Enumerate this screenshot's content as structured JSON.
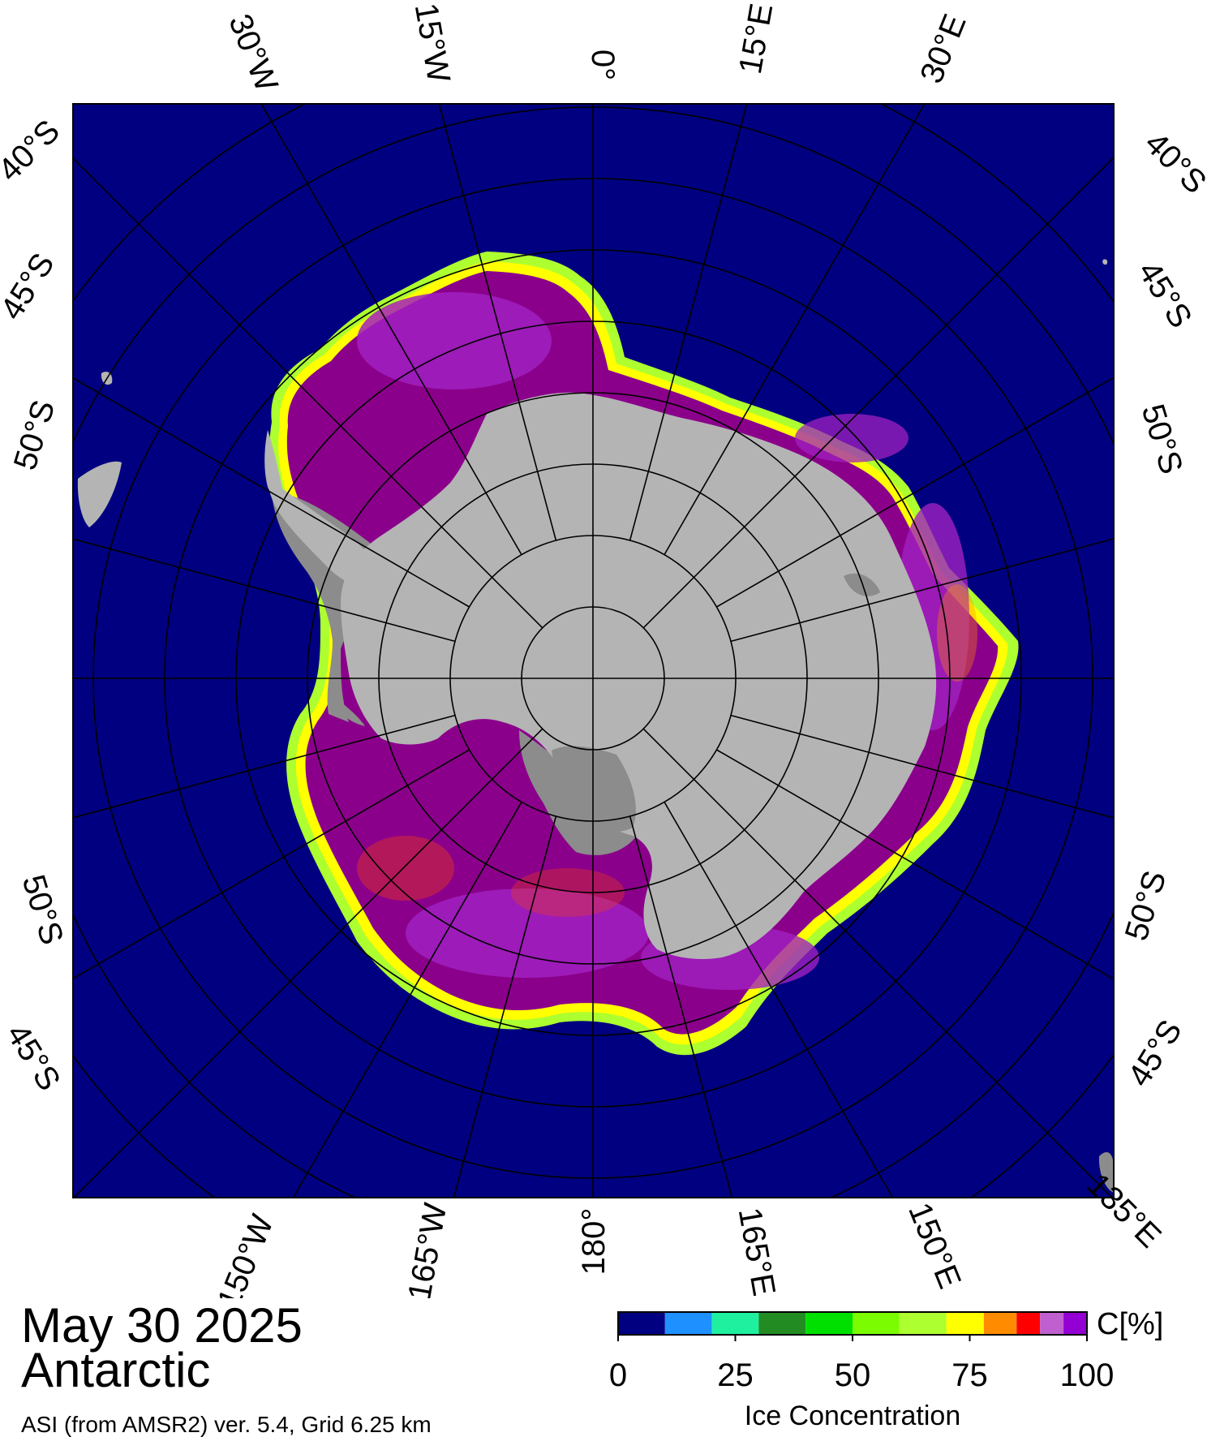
{
  "date": "May 30 2025",
  "region": "Antarctic",
  "product": "ASI (from AMSR2) ver. 5.4,  Grid 6.25 km",
  "colorbar": {
    "unit": "C[%]",
    "title": "Ice Concentration",
    "ticks": [
      "0",
      "25",
      "50",
      "75",
      "100"
    ],
    "classes": [
      {
        "from": 0,
        "to": 10,
        "color": "#000080"
      },
      {
        "from": 10,
        "to": 20,
        "color": "#1e90ff"
      },
      {
        "from": 20,
        "to": 30,
        "color": "#1ef0a0"
      },
      {
        "from": 30,
        "to": 40,
        "color": "#228b22"
      },
      {
        "from": 40,
        "to": 50,
        "color": "#00e000"
      },
      {
        "from": 50,
        "to": 60,
        "color": "#7cfc00"
      },
      {
        "from": 60,
        "to": 70,
        "color": "#adff2f"
      },
      {
        "from": 70,
        "to": 78,
        "color": "#ffff00"
      },
      {
        "from": 78,
        "to": 85,
        "color": "#ff8c00"
      },
      {
        "from": 85,
        "to": 90,
        "color": "#ff0000"
      },
      {
        "from": 90,
        "to": 95,
        "color": "#c060d0"
      },
      {
        "from": 95,
        "to": 100,
        "color": "#9400d3"
      }
    ]
  },
  "map_labels": {
    "top": [
      "30°W",
      "15°W",
      "0°",
      "15°E",
      "30°E"
    ],
    "bottom": [
      "150°W",
      "165°W",
      "180°",
      "165°E",
      "150°E",
      "135°E"
    ],
    "left": [
      "40°S",
      "45°S",
      "50°S",
      "50°S",
      "45°S"
    ],
    "right": [
      "40°S",
      "45°S",
      "50°S",
      "50°S",
      "45°S"
    ]
  },
  "colors": {
    "ocean": "#000080",
    "land": "#b4b4b4",
    "shelf": "#8c8c8c",
    "ice_high": "#8b008b",
    "ice_mid": "#a020c0",
    "ice_edge": "#ffff00",
    "grid": "#000000"
  }
}
